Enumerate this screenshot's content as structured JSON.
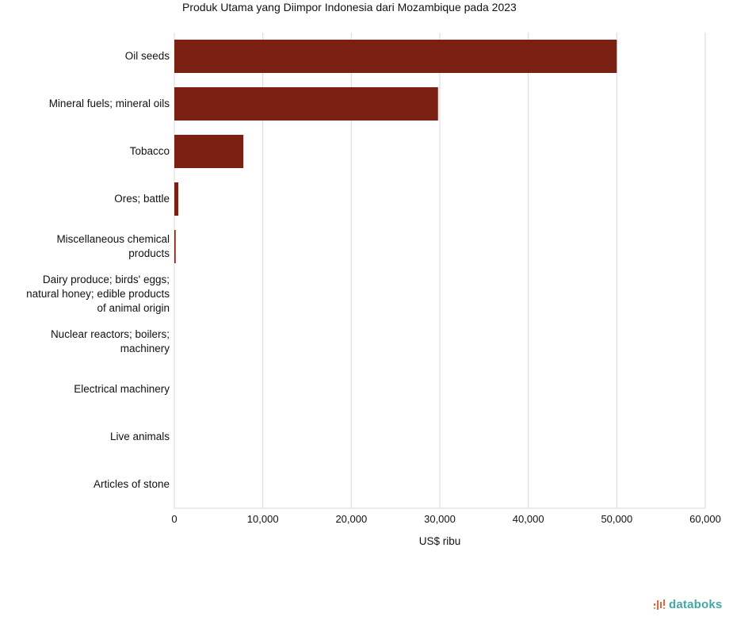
{
  "chart_data": {
    "type": "bar",
    "orientation": "horizontal",
    "title": "Produk Utama yang Diimpor Indonesia dari Mozambique pada 2023",
    "xlabel": "US$ ribu",
    "ylabel": "",
    "categories": [
      "Oil seeds",
      "Mineral fuels; mineral oils",
      "Tobacco",
      "Ores; battle",
      "Miscellaneous chemical products",
      "Dairy produce; birds' eggs; natural honey; edible products of animal origin",
      "Nuclear reactors; boilers; machinery",
      "Electrical machinery",
      "Live animals",
      "Articles of stone"
    ],
    "values": [
      50000,
      29800,
      7800,
      450,
      150,
      30,
      10,
      5,
      2,
      1
    ],
    "xlim": [
      0,
      60000
    ],
    "xticks": [
      "0",
      "10,000",
      "20,000",
      "30,000",
      "40,000",
      "50,000",
      "60,000"
    ],
    "tick_values": [
      0,
      10000,
      20000,
      30000,
      40000,
      50000,
      60000
    ],
    "bar_color": "#7b2114",
    "grid": true
  },
  "brand": {
    "name": "databoks",
    "color": "#41a8a5",
    "icon": "databoks-logo-icon"
  }
}
